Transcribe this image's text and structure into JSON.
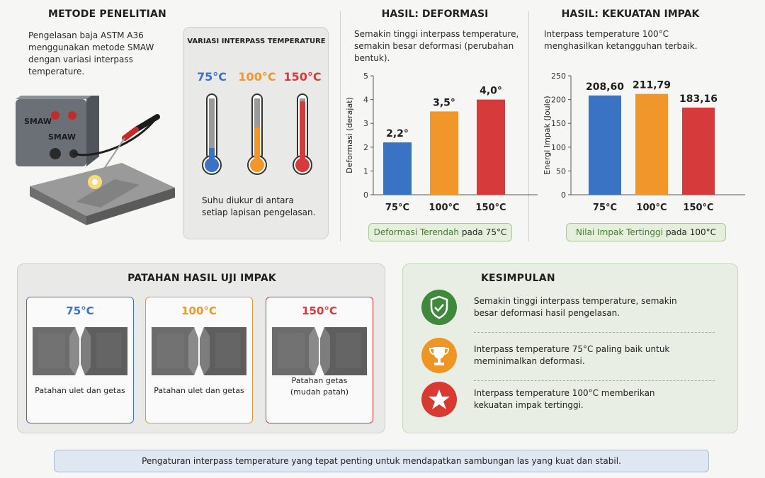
{
  "metode": {
    "title": "METODE PENELITIAN",
    "description": "Pengelasan baja ASTM A36 menggunakan metode SMAW dengan variasi interpass temperature.",
    "machine_label": "SMAW",
    "variasi_title": "VARIASI INTERPASS TEMPERATURE",
    "temps": [
      {
        "label": "75°C",
        "color": "#3b73c4",
        "level": 0.15
      },
      {
        "label": "100°C",
        "color": "#f0962b",
        "level": 0.5
      },
      {
        "label": "150°C",
        "color": "#d73a3a",
        "level": 0.95
      }
    ],
    "note": "Suhu diukur di antara setiap lapisan pengelasan."
  },
  "deformasi": {
    "title": "HASIL: DEFORMASI",
    "description": "Semakin tinggi interpass temperature, semakin besar deformasi (perubahan bentuk).",
    "badge_highlight": "Deformasi Terendah",
    "badge_rest": "pada 75°C"
  },
  "impak": {
    "title": "HASIL: KEKUATAN IMPAK",
    "description": "Interpass temperature 100°C menghasilkan ketangguhan terbaik.",
    "badge_highlight": "Nilai Impak Tertinggi",
    "badge_rest": "pada 100°C"
  },
  "chart_data": [
    {
      "type": "bar",
      "title": "HASIL: DEFORMASI",
      "categories": [
        "75°C",
        "100°C",
        "150°C"
      ],
      "values": [
        2.2,
        3.5,
        4.0
      ],
      "value_labels": [
        "2,2°",
        "3,5°",
        "4,0°"
      ],
      "colors": [
        "#3b73c4",
        "#f0962b",
        "#d73a3a"
      ],
      "ylabel": "Deformasi (derajat)",
      "xlabel": "",
      "ylim": [
        0,
        5
      ],
      "yticks": [
        0,
        1,
        2,
        3,
        4,
        5
      ],
      "grid": false
    },
    {
      "type": "bar",
      "title": "HASIL: KEKUATAN IMPAK",
      "categories": [
        "75°C",
        "100°C",
        "150°C"
      ],
      "values": [
        208.6,
        211.79,
        183.16
      ],
      "value_labels": [
        "208,60",
        "211,79",
        "183,16"
      ],
      "colors": [
        "#3b73c4",
        "#f0962b",
        "#d73a3a"
      ],
      "ylabel": "Energi Impak (Joule)",
      "xlabel": "",
      "ylim": [
        0,
        250
      ],
      "yticks": [
        0,
        50,
        100,
        150,
        200,
        250
      ],
      "grid": false
    }
  ],
  "patahan": {
    "title": "PATAHAN HASIL UJI IMPAK",
    "cards": [
      {
        "temp": "75°C",
        "desc": "Patahan ulet dan getas",
        "color": "#3b73c4"
      },
      {
        "temp": "100°C",
        "desc": "Patahan ulet dan getas",
        "color": "#f0962b"
      },
      {
        "temp": "150°C",
        "desc": "Patahan getas (mudah patah)",
        "color": "#d73a3a"
      }
    ]
  },
  "kesimpulan": {
    "title": "KESIMPULAN",
    "items": [
      {
        "text": "Semakin tinggi interpass temperature, semakin besar deformasi hasil pengelasan.",
        "icon": "shield-check-icon",
        "color": "#3f8a3a"
      },
      {
        "text": "Interpass temperature 75°C paling baik untuk meminimalkan deformasi.",
        "icon": "trophy-icon",
        "color": "#ee9524"
      },
      {
        "text": "Interpass temperature 100°C memberikan kekuatan impak tertinggi.",
        "icon": "star-icon",
        "color": "#d83a32"
      }
    ]
  },
  "footer": {
    "text": "Pengaturan interpass temperature yang tepat penting untuk mendapatkan sambungan las yang kuat dan stabil."
  }
}
